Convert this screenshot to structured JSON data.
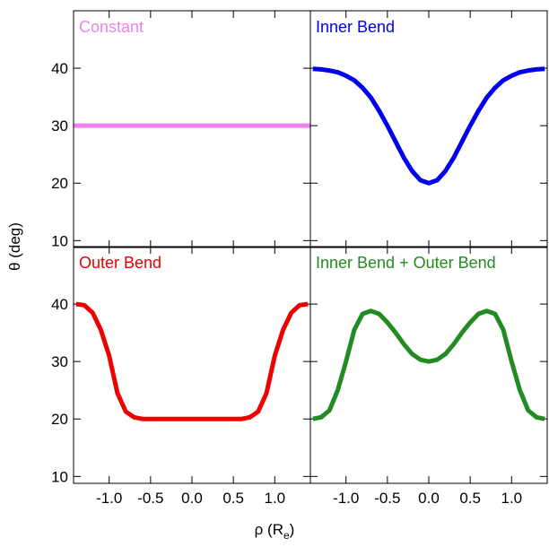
{
  "chart_data": [
    {
      "type": "line",
      "title": "Constant",
      "x": [
        -1.43,
        1.43
      ],
      "series": [
        {
          "color": "#ee82ee",
          "values": [
            30,
            30
          ]
        }
      ],
      "xlim": [
        -1.43,
        1.43
      ],
      "ylim": [
        8.8,
        50
      ],
      "yticks": [
        10,
        20,
        30,
        40
      ],
      "xticks": [
        {
          "value": -1,
          "label": "-1.0"
        },
        -0.5,
        {
          "value": 0,
          "label": "0.0"
        },
        0.5,
        {
          "value": 1,
          "label": "1.0"
        }
      ],
      "xtick_labels": false,
      "ytick_labels": true
    },
    {
      "type": "line",
      "title": "Inner Bend",
      "x": [
        -1.4,
        -1.3,
        -1.2,
        -1.1,
        -1.0,
        -0.9,
        -0.8,
        -0.7,
        -0.6,
        -0.5,
        -0.4,
        -0.3,
        -0.2,
        -0.1,
        0,
        0.1,
        0.2,
        0.3,
        0.4,
        0.5,
        0.6,
        0.7,
        0.8,
        0.9,
        1.0,
        1.1,
        1.2,
        1.3,
        1.4
      ],
      "series": [
        {
          "color": "#0000ee",
          "values": [
            39.9,
            39.8,
            39.6,
            39.3,
            38.7,
            37.9,
            36.6,
            34.9,
            32.6,
            30,
            27.2,
            24.4,
            22.1,
            20.5,
            20,
            20.5,
            22.1,
            24.4,
            27.2,
            30,
            32.6,
            34.9,
            36.6,
            37.9,
            38.7,
            39.3,
            39.6,
            39.8,
            39.9
          ]
        }
      ],
      "xlim": [
        -1.43,
        1.43
      ],
      "ylim": [
        8.8,
        50
      ],
      "yticks": [
        10,
        20,
        30,
        40
      ],
      "xticks": [
        {
          "value": -1,
          "label": "-1.0"
        },
        -0.5,
        {
          "value": 0,
          "label": "0.0"
        },
        0.5,
        {
          "value": 1,
          "label": "1.0"
        }
      ],
      "xtick_labels": false,
      "ytick_labels": false
    },
    {
      "type": "line",
      "title": "Outer Bend",
      "x": [
        -1.4,
        -1.3,
        -1.2,
        -1.1,
        -1.0,
        -0.9,
        -0.8,
        -0.7,
        -0.6,
        -0.5,
        -0.4,
        -0.3,
        -0.2,
        -0.1,
        0,
        0.1,
        0.2,
        0.3,
        0.4,
        0.5,
        0.6,
        0.7,
        0.8,
        0.9,
        1.0,
        1.1,
        1.2,
        1.3,
        1.4
      ],
      "series": [
        {
          "color": "#ee0000",
          "values": [
            40,
            39.8,
            38.5,
            35.5,
            31,
            24.5,
            21.3,
            20.3,
            20,
            20,
            20,
            20,
            20,
            20,
            20,
            20,
            20,
            20,
            20,
            20,
            20,
            20.3,
            21.3,
            24.5,
            31,
            35.5,
            38.5,
            39.8,
            40
          ]
        }
      ],
      "xlim": [
        -1.43,
        1.43
      ],
      "ylim": [
        8.8,
        50
      ],
      "yticks": [
        10,
        20,
        30,
        40
      ],
      "xticks": [
        {
          "value": -1,
          "label": "-1.0"
        },
        -0.5,
        {
          "value": 0,
          "label": "0.0"
        },
        0.5,
        {
          "value": 1,
          "label": "1.0"
        }
      ],
      "xtick_labels": true,
      "ytick_labels": true
    },
    {
      "type": "line",
      "title": "Inner Bend + Outer Bend",
      "x": [
        -1.4,
        -1.3,
        -1.2,
        -1.1,
        -1.0,
        -0.9,
        -0.8,
        -0.7,
        -0.6,
        -0.5,
        -0.4,
        -0.3,
        -0.2,
        -0.1,
        0,
        0.1,
        0.2,
        0.3,
        0.4,
        0.5,
        0.6,
        0.7,
        0.8,
        0.9,
        1.0,
        1.1,
        1.2,
        1.3,
        1.4
      ],
      "series": [
        {
          "color": "#228b22",
          "values": [
            20,
            20.3,
            21.5,
            25,
            30,
            35.5,
            38.3,
            38.8,
            38.3,
            36.8,
            35,
            33,
            31.3,
            30.3,
            30,
            30.3,
            31.3,
            33,
            35,
            36.8,
            38.3,
            38.8,
            38.3,
            35.5,
            30,
            25,
            21.5,
            20.3,
            20
          ]
        }
      ],
      "xlim": [
        -1.43,
        1.43
      ],
      "ylim": [
        8.8,
        50
      ],
      "yticks": [
        10,
        20,
        30,
        40
      ],
      "xticks": [
        {
          "value": -1,
          "label": "-1.0"
        },
        -0.5,
        {
          "value": 0,
          "label": "0.0"
        },
        0.5,
        {
          "value": 1,
          "label": "1.0"
        }
      ],
      "xtick_labels": true,
      "ytick_labels": false
    }
  ],
  "xlabel": [
    "ρ (R",
    "e",
    ")"
  ],
  "ylabel": "θ (deg)"
}
